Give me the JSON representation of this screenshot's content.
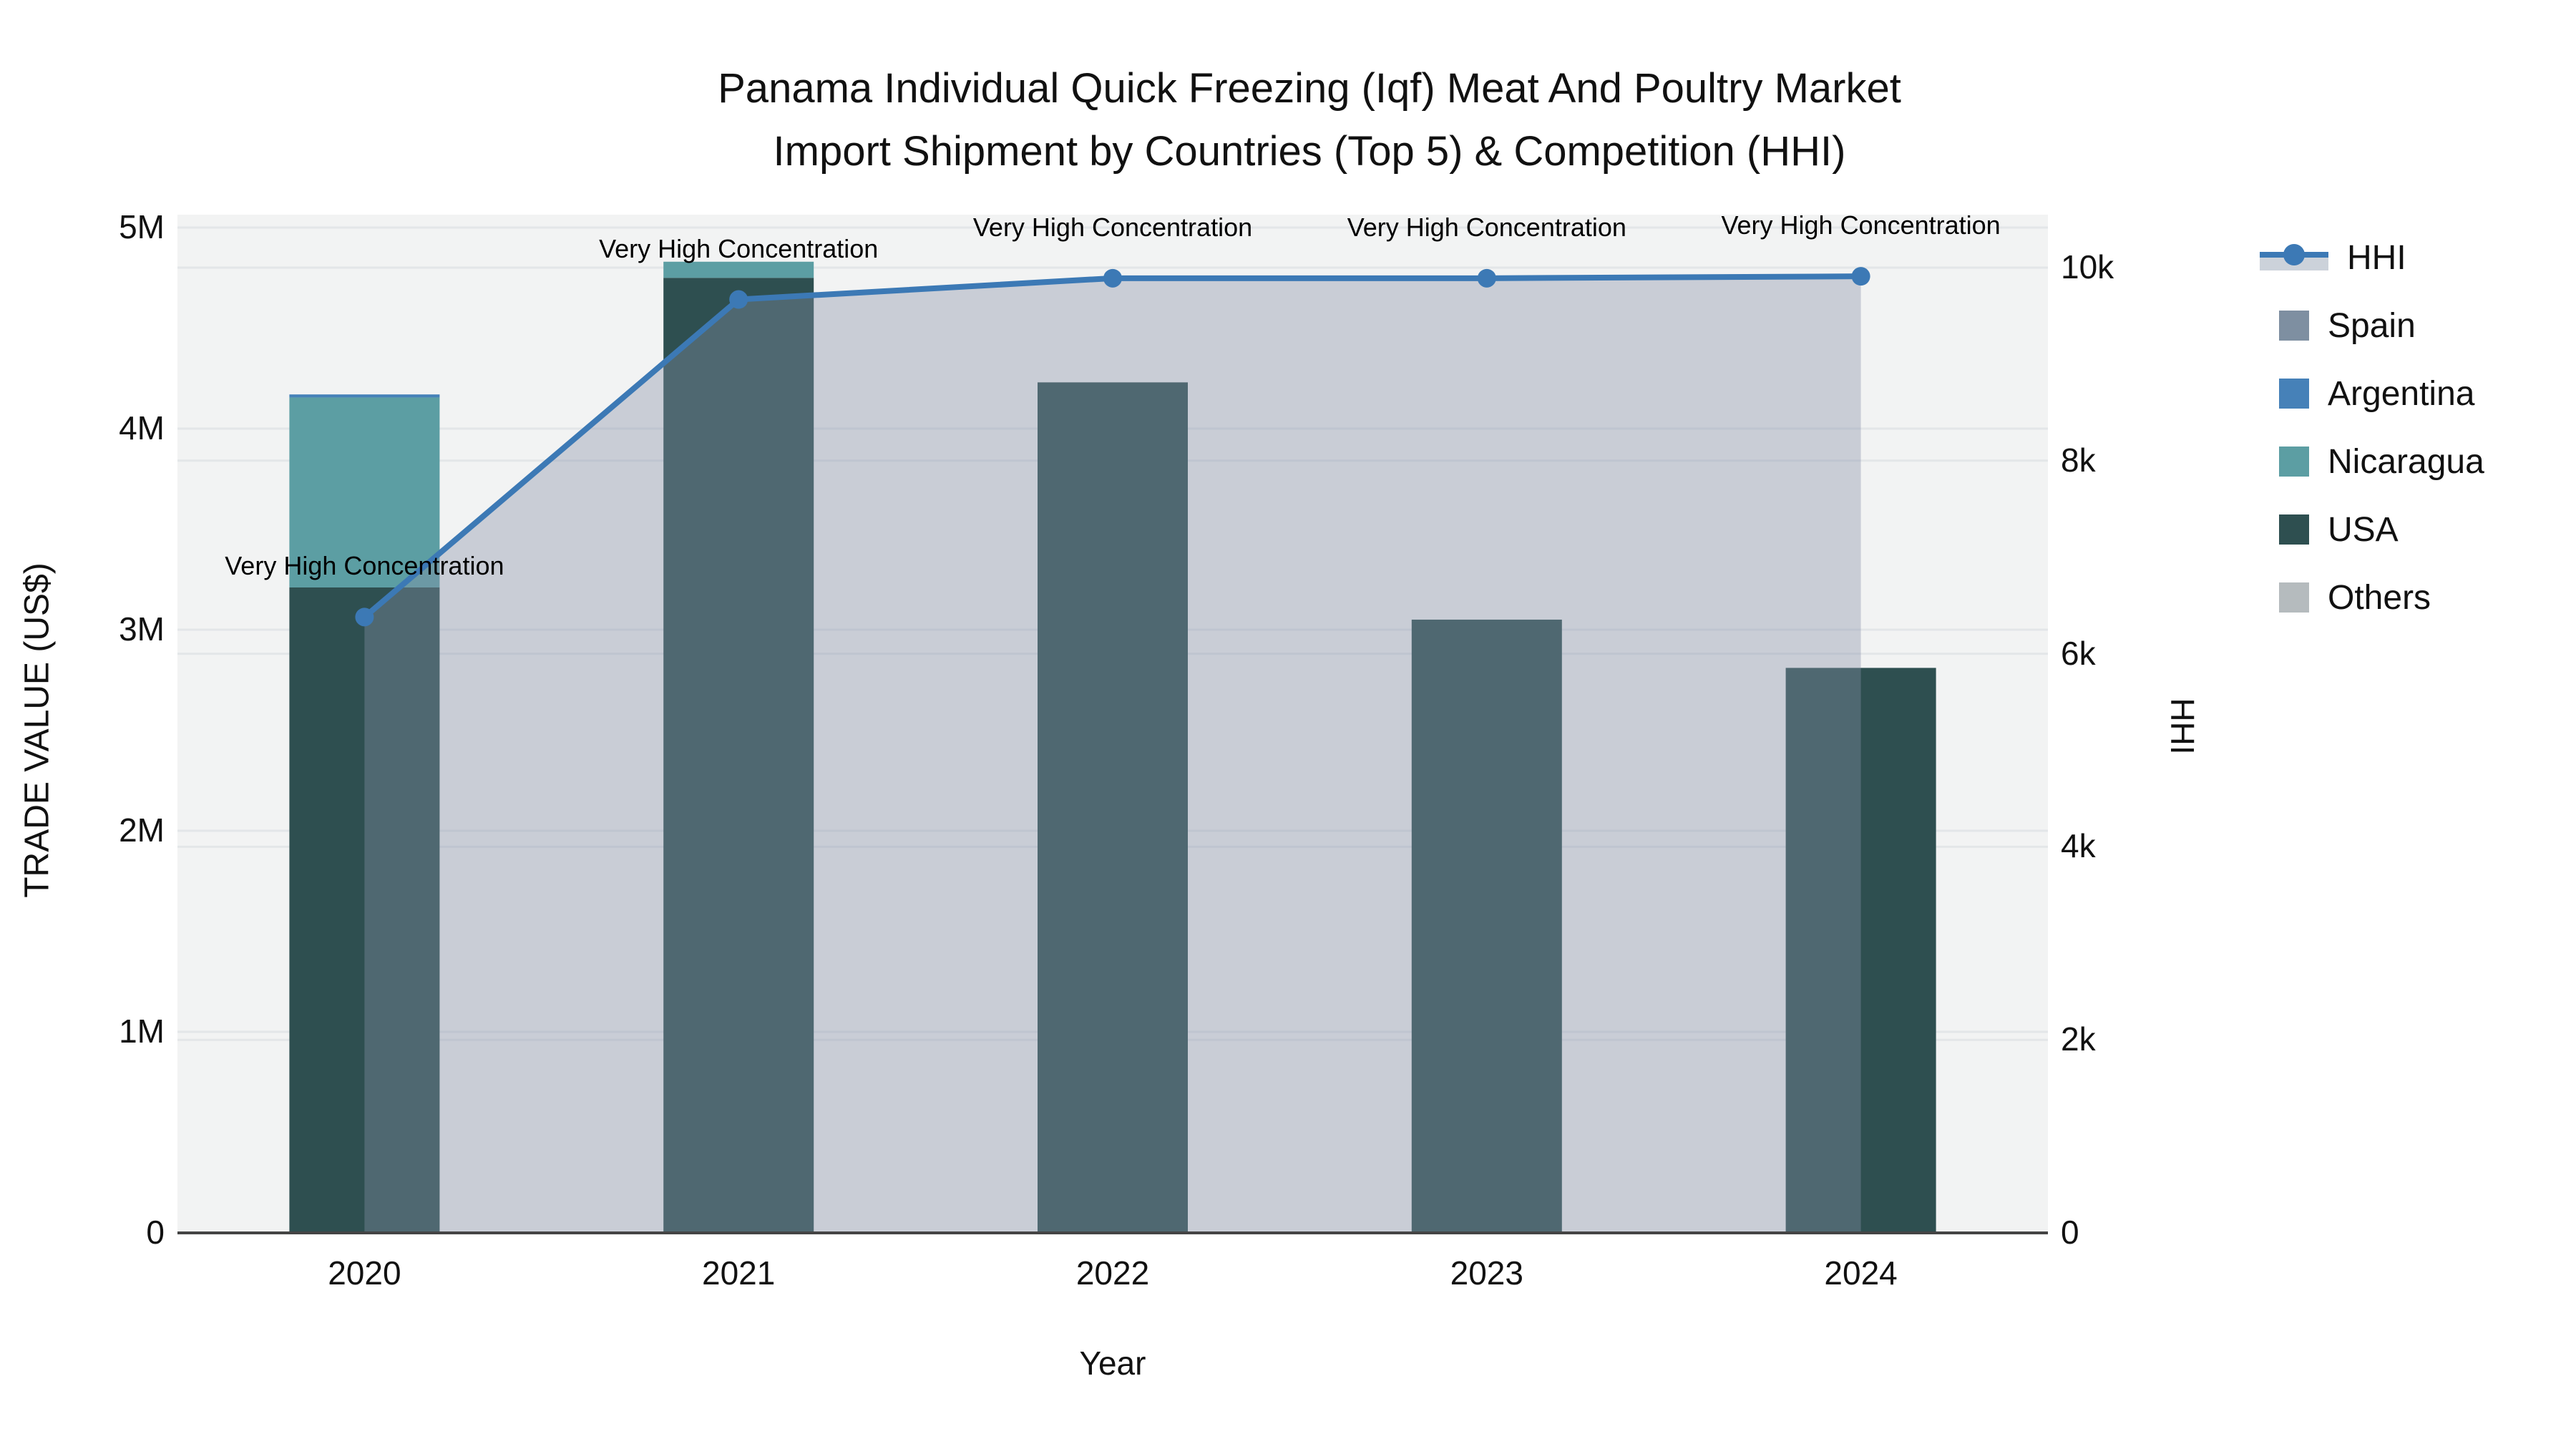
{
  "title": {
    "line1": "Panama Individual Quick Freezing (Iqf) Meat And Poultry Market",
    "line2": "Import Shipment by Countries (Top 5) & Competition (HHI)"
  },
  "colors": {
    "hhi_line": "#3c79b5",
    "hhi_fill": "rgba(133,145,167,0.38)",
    "spain": "#7e8fa1",
    "argentina": "#4681b8",
    "nicaragua": "#5c9ea3",
    "usa": "#2e4f50",
    "others": "#b5bbbe",
    "plot_bg": "#f2f3f3",
    "grid": "#e3e6e8",
    "axis_line": "#444444"
  },
  "legend": {
    "items": [
      {
        "label": "HHI",
        "type": "line",
        "color": "#3c79b5",
        "fill": "#ccd2da"
      },
      {
        "label": "Spain",
        "type": "swatch",
        "color": "#7e8fa1"
      },
      {
        "label": "Argentina",
        "type": "swatch",
        "color": "#4681b8"
      },
      {
        "label": "Nicaragua",
        "type": "swatch",
        "color": "#5c9ea3"
      },
      {
        "label": "USA",
        "type": "swatch",
        "color": "#2e4f50"
      },
      {
        "label": "Others",
        "type": "swatch",
        "color": "#b5bbbe"
      }
    ]
  },
  "chart_data": {
    "type": "bar+line",
    "title": "Panama Individual Quick Freezing (Iqf) Meat And Poultry Market Import Shipment by Countries (Top 5) & Competition (HHI)",
    "categories": [
      "2020",
      "2021",
      "2022",
      "2023",
      "2024"
    ],
    "xlabel": "Year",
    "stack_order": [
      "USA",
      "Nicaragua",
      "Argentina",
      "Spain",
      "Others"
    ],
    "series": [
      {
        "name": "Spain",
        "color": "#7e8fa1",
        "values": [
          0,
          0,
          0,
          0,
          0
        ]
      },
      {
        "name": "Argentina",
        "color": "#4681b8",
        "values": [
          15000,
          0,
          0,
          0,
          0
        ]
      },
      {
        "name": "Nicaragua",
        "color": "#5c9ea3",
        "values": [
          945000,
          80000,
          0,
          0,
          0
        ]
      },
      {
        "name": "USA",
        "color": "#2e4f50",
        "values": [
          3210000,
          4750000,
          4230000,
          3050000,
          2810000
        ]
      },
      {
        "name": "Others",
        "color": "#b5bbbe",
        "values": [
          0,
          0,
          0,
          0,
          0
        ]
      }
    ],
    "bar_totals": [
      4170000,
      4830000,
      4230000,
      3050000,
      2810000
    ],
    "line_series": {
      "name": "HHI",
      "color": "#3c79b5",
      "fill": "rgba(133,145,167,0.38)",
      "values": [
        6380,
        9670,
        9890,
        9890,
        9910
      ]
    },
    "annotations": [
      {
        "text": "Very High Concentration"
      },
      {
        "text": "Very High Concentration"
      },
      {
        "text": "Very High Concentration"
      },
      {
        "text": "Very High Concentration"
      },
      {
        "text": "Very High Concentration"
      }
    ],
    "left_axis": {
      "label": "TRADE VALUE (US$)",
      "max": 5000000,
      "ticks": [
        {
          "label": "0",
          "value": 0
        },
        {
          "label": "1M",
          "value": 1000000
        },
        {
          "label": "2M",
          "value": 2000000
        },
        {
          "label": "3M",
          "value": 3000000
        },
        {
          "label": "4M",
          "value": 4000000
        },
        {
          "label": "5M",
          "value": 5000000
        }
      ]
    },
    "right_axis": {
      "label": "HHI",
      "max": 10000,
      "ticks": [
        {
          "label": "0",
          "value": 0
        },
        {
          "label": "2k",
          "value": 2000
        },
        {
          "label": "4k",
          "value": 4000
        },
        {
          "label": "6k",
          "value": 6000
        },
        {
          "label": "8k",
          "value": 8000
        },
        {
          "label": "10k",
          "value": 10000
        }
      ]
    },
    "grid": true,
    "legend_position": "right"
  }
}
